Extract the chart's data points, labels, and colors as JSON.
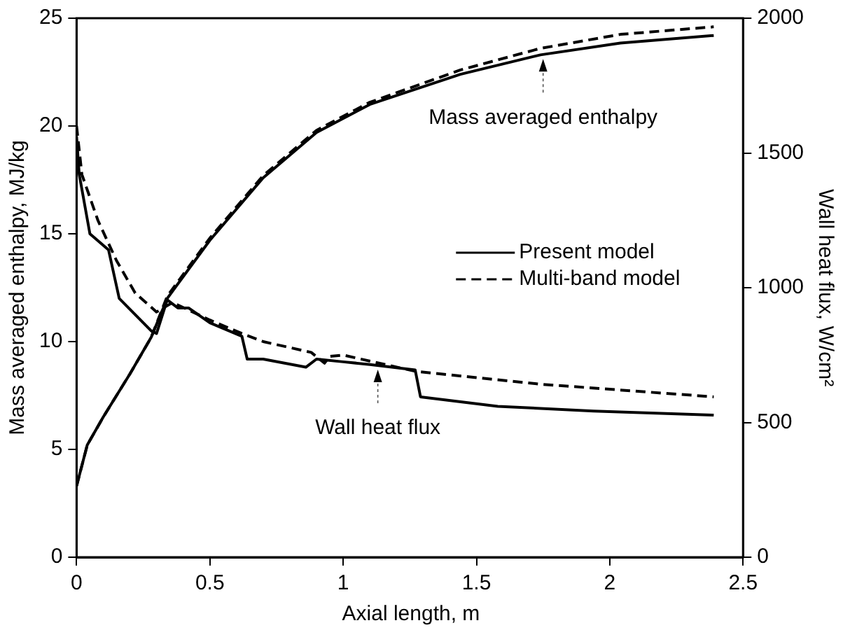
{
  "chart_data": {
    "type": "line",
    "xlabel": "Axial length, m",
    "ylabel": "Mass averaged enthalpy, MJ/kg",
    "y2label": "Wall heat flux, W/cm²",
    "xlim": [
      0,
      2.5
    ],
    "xticks": [
      0,
      0.5,
      1,
      1.5,
      2,
      2.5
    ],
    "ylim": [
      0,
      25
    ],
    "yticks": [
      0,
      5,
      10,
      15,
      20,
      25
    ],
    "y2lim": [
      0,
      2000
    ],
    "y2ticks": [
      0,
      500,
      1000,
      1500,
      2000
    ],
    "grid": false,
    "legend": "right",
    "marker": "none",
    "series": [
      {
        "name": "Present model",
        "color": "#000000",
        "line_style": "solid",
        "x": [
          0,
          0.04,
          0.1,
          0.2,
          0.28,
          0.34,
          0.5,
          0.7,
          0.9,
          1.1,
          1.44,
          1.74,
          2.04,
          2.39
        ],
        "values": [
          3.3,
          5.2,
          6.5,
          8.5,
          10.2,
          12.0,
          14.7,
          17.6,
          19.7,
          21.0,
          22.4,
          23.3,
          23.85,
          24.2
        ]
      },
      {
        "name": "Multi-band model",
        "color": "#000000",
        "line_style": "dashed",
        "x": [
          0,
          0.04,
          0.1,
          0.2,
          0.28,
          0.34,
          0.5,
          0.7,
          0.9,
          1.1,
          1.44,
          1.74,
          2.04,
          2.39
        ],
        "values": [
          3.3,
          5.2,
          6.5,
          8.5,
          10.2,
          12.1,
          14.8,
          17.7,
          19.8,
          21.1,
          22.6,
          23.6,
          24.25,
          24.6
        ]
      },
      {
        "color": "#000000",
        "line_style": "solid",
        "axis": "y2",
        "x": [
          0,
          0.01,
          0.05,
          0.12,
          0.16,
          0.28,
          0.3,
          0.34,
          0.38,
          0.42,
          0.5,
          0.62,
          0.64,
          0.7,
          0.86,
          0.9,
          1.0,
          1.1,
          1.27,
          1.29,
          1.58,
          1.94,
          2.39
        ],
        "values": [
          1560,
          1420,
          1200,
          1140,
          960,
          840,
          830,
          955,
          925,
          925,
          870,
          820,
          735,
          735,
          705,
          735,
          725,
          715,
          695,
          595,
          560,
          542,
          527
        ]
      },
      {
        "color": "#000000",
        "line_style": "dashed",
        "axis": "y2",
        "x": [
          0,
          0.02,
          0.08,
          0.15,
          0.22,
          0.3,
          0.36,
          0.5,
          0.62,
          0.7,
          0.88,
          0.93,
          0.95,
          1.0,
          1.27,
          1.74,
          2.39
        ],
        "values": [
          1600,
          1420,
          1250,
          1100,
          980,
          910,
          945,
          880,
          830,
          800,
          760,
          720,
          745,
          750,
          690,
          642,
          595
        ]
      }
    ],
    "annotations": [
      {
        "text": "Mass averaged enthalpy",
        "x": 1.75,
        "y": 23.3
      },
      {
        "text": "Wall heat flux",
        "x": 1.13,
        "y": 8.9
      }
    ]
  }
}
